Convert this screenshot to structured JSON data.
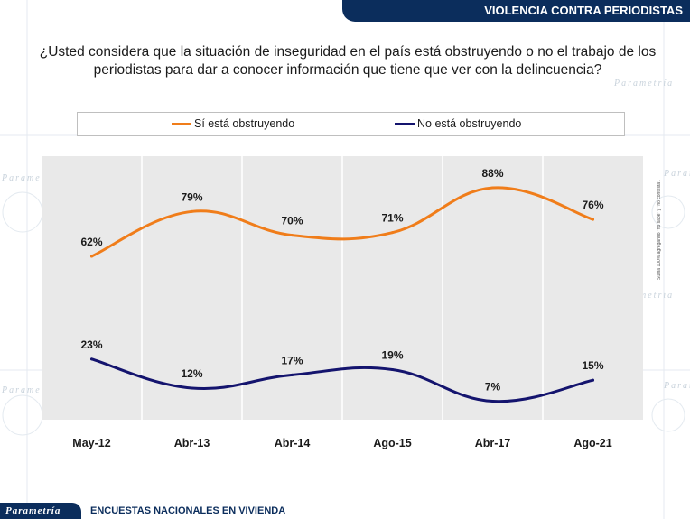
{
  "header": {
    "title": "VIOLENCIA CONTRA PERIODISTAS"
  },
  "question": "¿Usted considera que la situación de inseguridad en el país está obstruyendo o no el trabajo de los periodistas para dar a conocer información que tiene que ver con la delincuencia?",
  "side_note": "Suma 100% agregando \"no sabe\" y \"no contesta\".",
  "footer": {
    "brand": "Parametría",
    "text": "ENCUESTAS NACIONALES EN VIVIENDA"
  },
  "colors": {
    "series1": "#f07d1a",
    "series2": "#14146e",
    "banner": "#0b2d5c",
    "plot_bg": "#e9e9e9"
  },
  "chart_data": {
    "type": "line",
    "categories": [
      "May-12",
      "Abr-13",
      "Abr-14",
      "Ago-15",
      "Abr-17",
      "Ago-21"
    ],
    "series": [
      {
        "name": "Sí está obstruyendo",
        "values": [
          62,
          79,
          70,
          71,
          88,
          76
        ],
        "labels": [
          "62%",
          "79%",
          "70%",
          "71%",
          "88%",
          "76%"
        ]
      },
      {
        "name": "No está obstruyendo",
        "values": [
          23,
          12,
          17,
          19,
          7,
          15
        ],
        "labels": [
          "23%",
          "12%",
          "17%",
          "19%",
          "7%",
          "15%"
        ]
      }
    ],
    "title": "",
    "xlabel": "",
    "ylabel": "",
    "ylim": [
      0,
      100
    ],
    "grid": "vertical",
    "legend": "top"
  }
}
